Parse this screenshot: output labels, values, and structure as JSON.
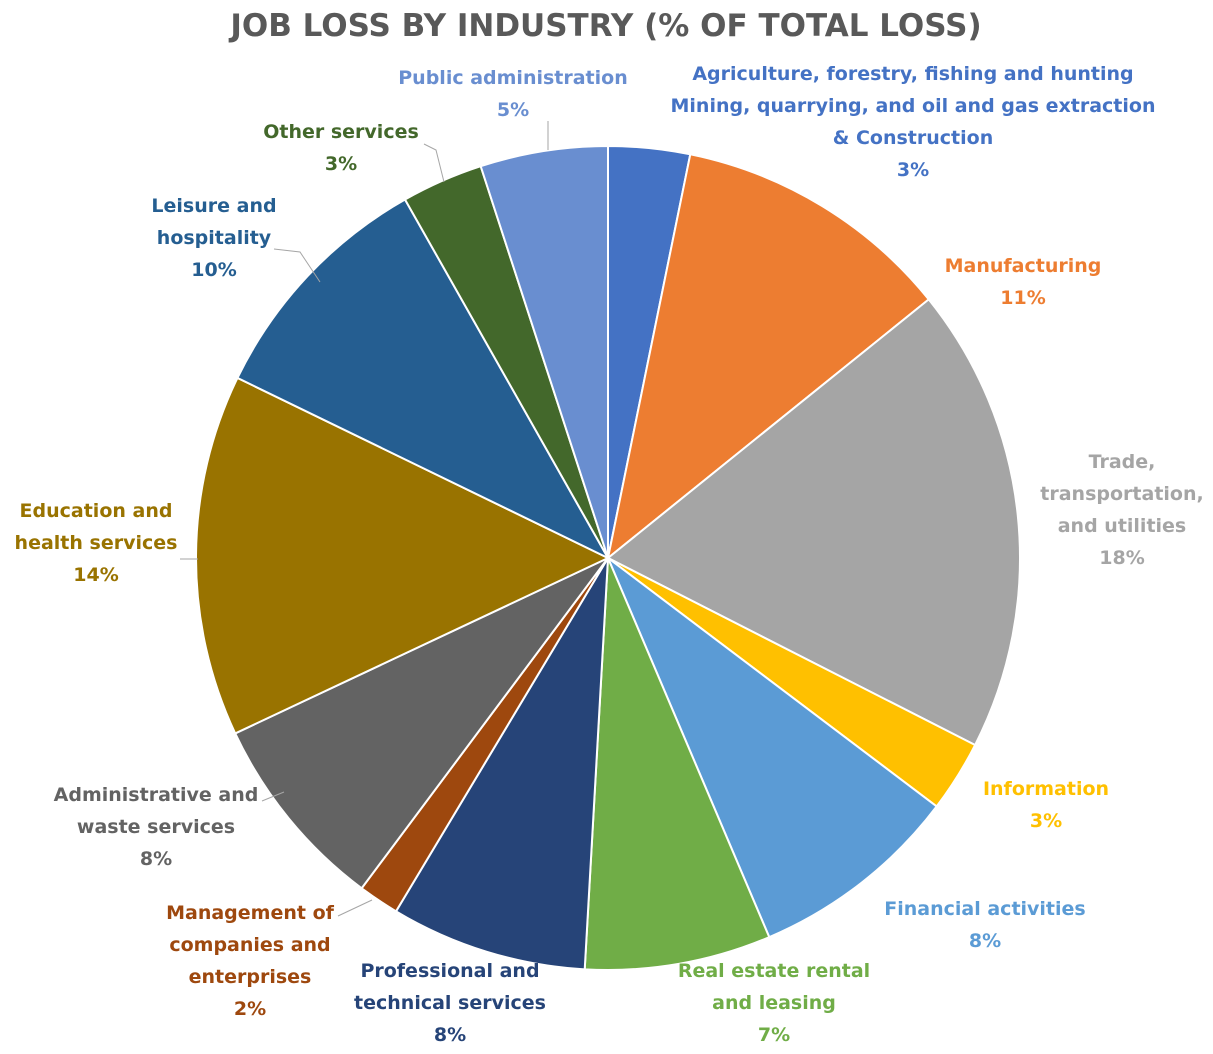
{
  "chart_data": {
    "type": "pie",
    "title": "JOB LOSS BY INDUSTRY (% OF TOTAL LOSS)",
    "slices": [
      {
        "label_lines": [
          "Agriculture, forestry, fishing and hunting",
          "Mining, quarrying, and oil and gas extraction",
          "& Construction"
        ],
        "value_label": "3%",
        "value": 3.2,
        "color": "#4472c4"
      },
      {
        "label_lines": [
          "Manufacturing"
        ],
        "value_label": "11%",
        "value": 11.0,
        "color": "#ed7d31"
      },
      {
        "label_lines": [
          "Trade,",
          "transportation,",
          "and utilities"
        ],
        "value_label": "18%",
        "value": 18.3,
        "color": "#a5a5a5"
      },
      {
        "label_lines": [
          "Information"
        ],
        "value_label": "3%",
        "value": 2.8,
        "color": "#ffc000"
      },
      {
        "label_lines": [
          "Financial activities"
        ],
        "value_label": "8%",
        "value": 8.3,
        "color": "#5b9bd5"
      },
      {
        "label_lines": [
          "Real estate rental",
          "and leasing"
        ],
        "value_label": "7%",
        "value": 7.3,
        "color": "#70ad47"
      },
      {
        "label_lines": [
          "Professional and",
          "technical services"
        ],
        "value_label": "8%",
        "value": 7.7,
        "color": "#264478"
      },
      {
        "label_lines": [
          "Management of",
          "companies and",
          "enterprises"
        ],
        "value_label": "2%",
        "value": 1.6,
        "color": "#9e480e"
      },
      {
        "label_lines": [
          "Administrative and",
          "waste services"
        ],
        "value_label": "8%",
        "value": 7.8,
        "color": "#636363"
      },
      {
        "label_lines": [
          "Education and",
          "health services"
        ],
        "value_label": "14%",
        "value": 14.2,
        "color": "#997300"
      },
      {
        "label_lines": [
          "Leisure and",
          "hospitality"
        ],
        "value_label": "10%",
        "value": 9.6,
        "color": "#255e91"
      },
      {
        "label_lines": [
          "Other services"
        ],
        "value_label": "3%",
        "value": 3.2,
        "color": "#43682b"
      },
      {
        "label_lines": [
          "Public administration"
        ],
        "value_label": "5%",
        "value": 5.0,
        "color": "#698ed0"
      }
    ]
  }
}
